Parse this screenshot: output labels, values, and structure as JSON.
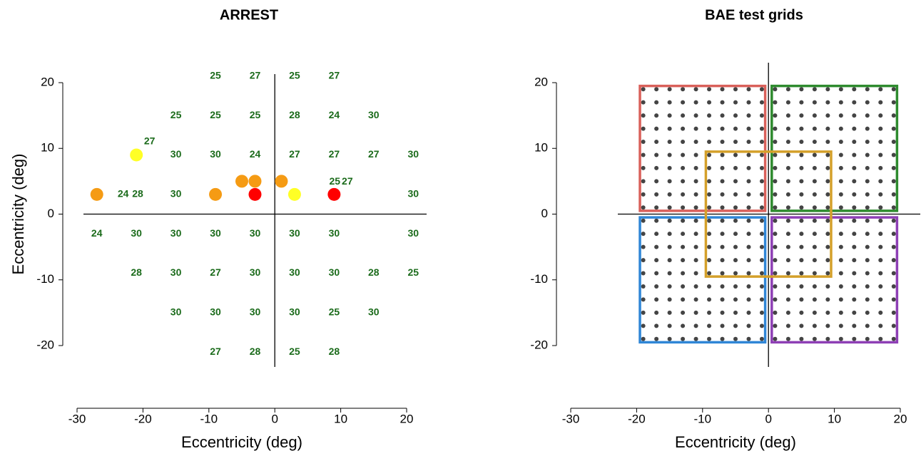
{
  "chart_data": [
    {
      "type": "scatter",
      "title": "ARREST",
      "x_label": "Eccentricity (deg)",
      "y_label": "Eccentricity (deg)",
      "xlim": [
        -30,
        20
      ],
      "ylim": [
        -20,
        20
      ],
      "xticks": [
        -30,
        -20,
        -10,
        0,
        10,
        20
      ],
      "yticks": [
        -20,
        -10,
        0,
        10,
        20
      ],
      "label_color": "#1b6b1b",
      "labels": {
        "x": [
          -9,
          -3,
          3,
          9,
          -15,
          -9,
          -3,
          3,
          9,
          15,
          -15,
          -9,
          -3,
          3,
          9,
          15,
          21,
          -19,
          -23,
          -20.8,
          -15,
          21,
          9.1,
          11,
          -27,
          -21,
          -15,
          -9,
          -3,
          3,
          9,
          21,
          -21,
          -15,
          -9,
          -3,
          3,
          9,
          15,
          21,
          -15,
          -9,
          -3,
          3,
          9,
          15,
          -9,
          -3,
          3,
          9
        ],
        "y": [
          21,
          21,
          21,
          21,
          15,
          15,
          15,
          15,
          15,
          15,
          9,
          9,
          9,
          9,
          9,
          9,
          9,
          11,
          3,
          3,
          3,
          3,
          4.9,
          4.9,
          -3,
          -3,
          -3,
          -3,
          -3,
          -3,
          -3,
          -3,
          -9,
          -9,
          -9,
          -9,
          -9,
          -9,
          -9,
          -9,
          -15,
          -15,
          -15,
          -15,
          -15,
          -15,
          -21,
          -21,
          -21,
          -21
        ],
        "values": [
          25,
          27,
          25,
          27,
          25,
          25,
          25,
          28,
          24,
          30,
          30,
          30,
          24,
          27,
          27,
          27,
          30,
          27,
          24,
          28,
          30,
          30,
          25,
          27,
          24,
          30,
          30,
          30,
          30,
          30,
          30,
          30,
          28,
          30,
          27,
          30,
          30,
          30,
          28,
          25,
          30,
          30,
          30,
          30,
          25,
          30,
          27,
          28,
          25,
          28
        ]
      },
      "points": {
        "x": [
          -27,
          -21,
          -9,
          -5,
          -3,
          -3,
          1,
          3,
          9
        ],
        "y": [
          3,
          9,
          3,
          5,
          5,
          3,
          5,
          3,
          3
        ],
        "colors": [
          "#f59b14",
          "#ffff26",
          "#f59b14",
          "#f59b14",
          "#f59b14",
          "#ff0000",
          "#f59b14",
          "#ffff26",
          "#ff0000"
        ]
      }
    },
    {
      "type": "grid",
      "title": "BAE test grids",
      "x_label": "Eccentricity (deg)",
      "xlim": [
        -30,
        20
      ],
      "ylim": [
        -20,
        20
      ],
      "xticks": [
        -30,
        -20,
        -10,
        0,
        10,
        20
      ],
      "yticks": [
        -20,
        -10,
        0,
        10,
        20
      ],
      "dot_color": "#444444",
      "grid_x": [
        -19,
        -17,
        -15,
        -13,
        -11,
        -9,
        -7,
        -5,
        -3,
        -1,
        1,
        3,
        5,
        7,
        9,
        11,
        13,
        15,
        17,
        19
      ],
      "grid_y": [
        -19,
        -17,
        -15,
        -13,
        -11,
        -9,
        -7,
        -5,
        -3,
        -1,
        1,
        3,
        5,
        7,
        9,
        11,
        13,
        15,
        17,
        19
      ],
      "rects": [
        {
          "color": "#d9605a",
          "x": [
            -19.5,
            -0.5
          ],
          "y": [
            0.5,
            19.5
          ]
        },
        {
          "color": "#2e8b2e",
          "x": [
            0.5,
            19.5
          ],
          "y": [
            0.5,
            19.5
          ]
        },
        {
          "color": "#2f86d6",
          "x": [
            -19.5,
            -0.5
          ],
          "y": [
            -19.5,
            -0.5
          ]
        },
        {
          "color": "#8e3fb5",
          "x": [
            0.5,
            19.5
          ],
          "y": [
            -19.5,
            -0.5
          ]
        },
        {
          "color": "#d4a02a",
          "x": [
            -9.5,
            9.5
          ],
          "y": [
            -9.5,
            9.5
          ]
        }
      ]
    }
  ]
}
